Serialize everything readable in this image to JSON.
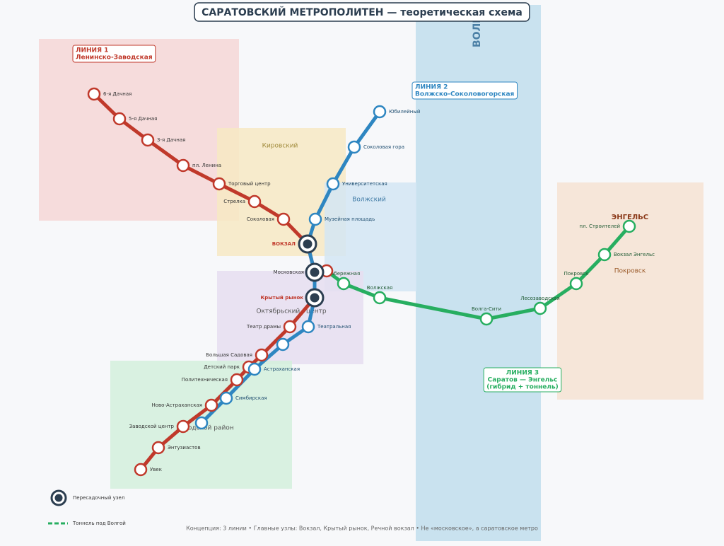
{
  "title": "САРАТОВСКИЙ МЕТРОПОЛИТЕН — теоретическая схема",
  "river": "ВОЛГА",
  "districts": [
    {
      "name": "Кировский",
      "color": "#f7e9c3",
      "text_color": "#a08a3a"
    },
    {
      "name": "Волжский",
      "color": "#d3e6f3",
      "text_color": "#3f7aa5"
    },
    {
      "name": "Октябрьский / центр",
      "color": "#e6def0",
      "text_color": "#555"
    },
    {
      "name": "Заводской район",
      "color": "#d4f0dc",
      "text_color": "#555"
    },
    {
      "name": "Покровск",
      "color": "#f6e3d2",
      "text_color": "#9a5a2a"
    }
  ],
  "city": "ЭНГЕЛЬС",
  "lines": [
    {
      "label": [
        "ЛИНИЯ 1",
        "Ленинско-Заводская"
      ],
      "color": "#c0392b",
      "stations": [
        "6-я Дачная",
        "5-я Дачная",
        "3-я Дачная",
        "пл. Ленина",
        "Торговый центр",
        "Стрелка",
        "Соколовая",
        "Театр драмы",
        "Большая Садовая",
        "Детский парк",
        "Политехническая",
        "Ново-Астраханская",
        "Заводской центр",
        "Энтузиастов",
        "Увек"
      ]
    },
    {
      "label": [
        "ЛИНИЯ 2",
        "Волжско-Соколовогорская"
      ],
      "color": "#2e86c1",
      "stations": [
        "Юбилейный",
        "Соколовая гора",
        "Университетская",
        "Музейная площадь",
        "Театральная",
        "Астраханская",
        "Симбирская"
      ]
    },
    {
      "label": [
        "ЛИНИЯ 3",
        "Саратов — Энгельс",
        "(гибрид + тоннель)"
      ],
      "color": "#27ae60",
      "stations": [
        "Набережная",
        "Волжская",
        "Волга-Сити",
        "Лесозаводская",
        "Покровск",
        "Вокзал Энгельс",
        "пл. Строителей"
      ]
    }
  ],
  "interchanges": [
    "ВОКЗАЛ",
    "Московская",
    "Крытый рынок"
  ],
  "legend": [
    "Пересадочный узел",
    "Тоннель под Волгой"
  ],
  "footer": "Концепция: 3 линии • Главные узлы: Вокзал, Крытый рынок, Речной вокзал • Не «московское», а саратовское метро"
}
